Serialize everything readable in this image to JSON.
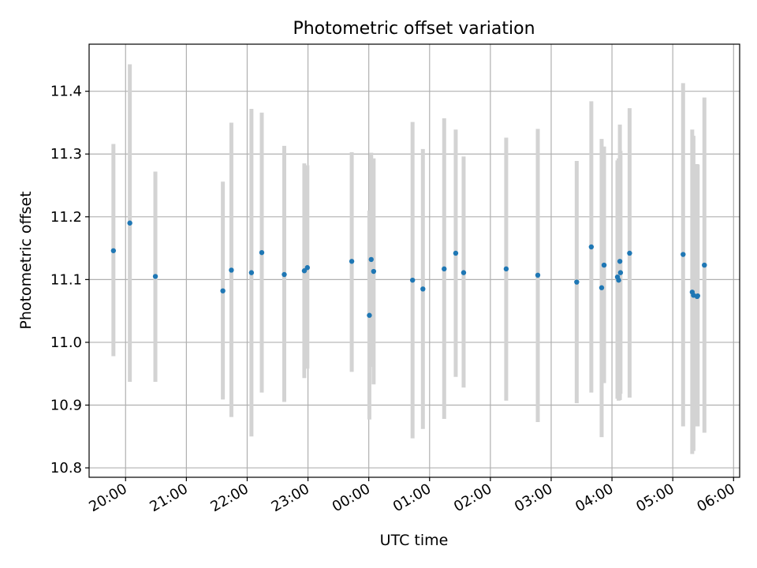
{
  "chart_data": {
    "type": "scatter",
    "title": "Photometric offset variation",
    "xlabel": "UTC time",
    "ylabel": "Photometric offset",
    "grid": true,
    "legend": "none",
    "x_unit": "hours (UTC, continuing past midnight)",
    "xlim": [
      19.4,
      30.1
    ],
    "ylim": [
      10.785,
      11.475
    ],
    "x_ticks": [
      {
        "value": 20,
        "label": "20:00"
      },
      {
        "value": 21,
        "label": "21:00"
      },
      {
        "value": 22,
        "label": "22:00"
      },
      {
        "value": 23,
        "label": "23:00"
      },
      {
        "value": 24,
        "label": "00:00"
      },
      {
        "value": 25,
        "label": "01:00"
      },
      {
        "value": 26,
        "label": "02:00"
      },
      {
        "value": 27,
        "label": "03:00"
      },
      {
        "value": 28,
        "label": "04:00"
      },
      {
        "value": 29,
        "label": "05:00"
      },
      {
        "value": 30,
        "label": "06:00"
      }
    ],
    "y_ticks": [
      {
        "value": 10.8,
        "label": "10.8"
      },
      {
        "value": 10.9,
        "label": "10.9"
      },
      {
        "value": 11.0,
        "label": "11.0"
      },
      {
        "value": 11.1,
        "label": "11.1"
      },
      {
        "value": 11.2,
        "label": "11.2"
      },
      {
        "value": 11.3,
        "label": "11.3"
      },
      {
        "value": 11.4,
        "label": "11.4"
      }
    ],
    "colors": {
      "points": "#1f77b4",
      "errorbars": "#d3d3d3",
      "grid": "#b0b0b0"
    },
    "series": [
      {
        "points": [
          {
            "x": 19.8,
            "y": 11.146,
            "ylow": 10.978,
            "yhigh": 11.316
          },
          {
            "x": 20.07,
            "y": 11.19,
            "ylow": 10.937,
            "yhigh": 11.443
          },
          {
            "x": 20.49,
            "y": 11.105,
            "ylow": 10.937,
            "yhigh": 11.272
          },
          {
            "x": 21.6,
            "y": 11.082,
            "ylow": 10.909,
            "yhigh": 11.256
          },
          {
            "x": 21.74,
            "y": 11.115,
            "ylow": 10.881,
            "yhigh": 11.35
          },
          {
            "x": 22.07,
            "y": 11.111,
            "ylow": 10.85,
            "yhigh": 11.372
          },
          {
            "x": 22.24,
            "y": 11.143,
            "ylow": 10.92,
            "yhigh": 11.366
          },
          {
            "x": 22.61,
            "y": 11.108,
            "ylow": 10.905,
            "yhigh": 11.313
          },
          {
            "x": 22.94,
            "y": 11.114,
            "ylow": 10.943,
            "yhigh": 11.285
          },
          {
            "x": 22.99,
            "y": 11.119,
            "ylow": 10.958,
            "yhigh": 11.282
          },
          {
            "x": 23.72,
            "y": 11.129,
            "ylow": 10.953,
            "yhigh": 11.303
          },
          {
            "x": 24.01,
            "y": 11.043,
            "ylow": 10.877,
            "yhigh": 11.21
          },
          {
            "x": 24.04,
            "y": 11.132,
            "ylow": 10.961,
            "yhigh": 11.302
          },
          {
            "x": 24.08,
            "y": 11.113,
            "ylow": 10.933,
            "yhigh": 11.293
          },
          {
            "x": 24.72,
            "y": 11.099,
            "ylow": 10.847,
            "yhigh": 11.351
          },
          {
            "x": 24.89,
            "y": 11.085,
            "ylow": 10.862,
            "yhigh": 11.308
          },
          {
            "x": 25.24,
            "y": 11.117,
            "ylow": 10.878,
            "yhigh": 11.357
          },
          {
            "x": 25.43,
            "y": 11.142,
            "ylow": 10.945,
            "yhigh": 11.339
          },
          {
            "x": 25.56,
            "y": 11.111,
            "ylow": 10.928,
            "yhigh": 11.296
          },
          {
            "x": 26.26,
            "y": 11.117,
            "ylow": 10.907,
            "yhigh": 11.326
          },
          {
            "x": 26.78,
            "y": 11.107,
            "ylow": 10.873,
            "yhigh": 11.34
          },
          {
            "x": 27.42,
            "y": 11.096,
            "ylow": 10.903,
            "yhigh": 11.289
          },
          {
            "x": 27.66,
            "y": 11.152,
            "ylow": 10.92,
            "yhigh": 11.384
          },
          {
            "x": 27.83,
            "y": 11.087,
            "ylow": 10.849,
            "yhigh": 11.324
          },
          {
            "x": 27.87,
            "y": 11.123,
            "ylow": 10.935,
            "yhigh": 11.312
          },
          {
            "x": 28.09,
            "y": 11.104,
            "ylow": 10.91,
            "yhigh": 11.29
          },
          {
            "x": 28.11,
            "y": 11.099,
            "ylow": 10.907,
            "yhigh": 11.293
          },
          {
            "x": 28.13,
            "y": 11.129,
            "ylow": 10.908,
            "yhigh": 11.347
          },
          {
            "x": 28.14,
            "y": 11.111,
            "ylow": 10.918,
            "yhigh": 11.305
          },
          {
            "x": 28.29,
            "y": 11.142,
            "ylow": 10.912,
            "yhigh": 11.373
          },
          {
            "x": 29.17,
            "y": 11.14,
            "ylow": 10.866,
            "yhigh": 11.413
          },
          {
            "x": 29.32,
            "y": 11.08,
            "ylow": 10.822,
            "yhigh": 11.339
          },
          {
            "x": 29.34,
            "y": 11.075,
            "ylow": 10.827,
            "yhigh": 11.329
          },
          {
            "x": 29.4,
            "y": 11.073,
            "ylow": 10.866,
            "yhigh": 11.284
          },
          {
            "x": 29.41,
            "y": 11.074,
            "ylow": 10.866,
            "yhigh": 11.283
          },
          {
            "x": 29.52,
            "y": 11.123,
            "ylow": 10.856,
            "yhigh": 11.39
          }
        ]
      }
    ]
  }
}
